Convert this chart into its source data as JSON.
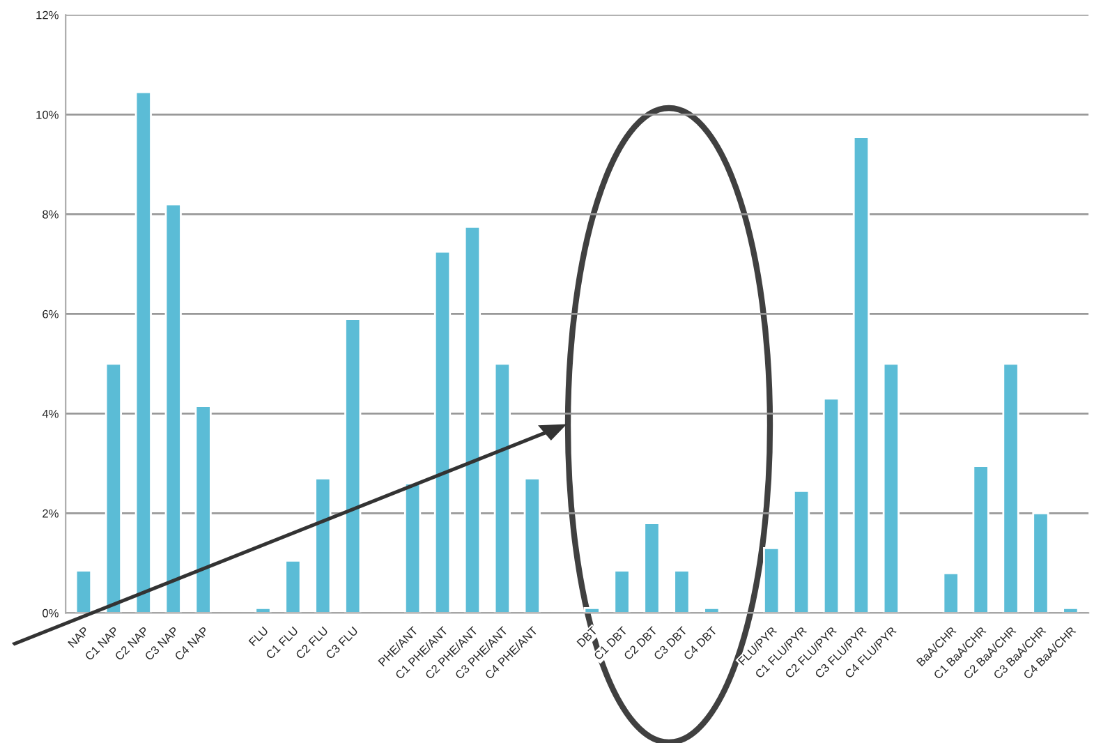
{
  "chart_data": {
    "type": "bar",
    "categories": [
      "NAP",
      "C1 NAP",
      "C2 NAP",
      "C3 NAP",
      "C4 NAP",
      null,
      "FLU",
      "C1 FLU",
      "C2 FLU",
      "C3 FLU",
      null,
      "PHE/ANT",
      "C1 PHE/ANT",
      "C2 PHE/ANT",
      "C3 PHE/ANT",
      "C4 PHE/ANT",
      null,
      "DBT",
      "C1 DBT",
      "C2 DBT",
      "C3 DBT",
      "C4 DBT",
      null,
      "FLU/PYR",
      "C1 FLU/PYR",
      "C2 FLU/PYR",
      "C3 FLU/PYR",
      "C4 FLU/PYR",
      null,
      "BaA/CHR",
      "C1 BaA/CHR",
      "C2 BaA/CHR",
      "C3 BaA/CHR",
      "C4 BaA/CHR"
    ],
    "values": [
      0.85,
      5.0,
      10.45,
      8.2,
      4.15,
      null,
      0.1,
      1.05,
      2.7,
      5.9,
      null,
      2.6,
      7.25,
      7.75,
      5.0,
      2.7,
      null,
      0.1,
      0.85,
      1.8,
      0.85,
      0.1,
      null,
      1.3,
      2.45,
      4.3,
      9.55,
      5.0,
      null,
      0.8,
      2.95,
      5.0,
      2.0,
      0.1
    ],
    "color": "#5bbcd6",
    "ylim": [
      0,
      12
    ],
    "yticks": [
      {
        "value": 0,
        "label": "0%"
      },
      {
        "value": 2,
        "label": "2%"
      },
      {
        "value": 4,
        "label": "4%"
      },
      {
        "value": 6,
        "label": "6%"
      },
      {
        "value": 8,
        "label": "8%"
      },
      {
        "value": 10,
        "label": "10%"
      },
      {
        "value": 12,
        "label": "12%"
      }
    ],
    "grid": "y"
  }
}
